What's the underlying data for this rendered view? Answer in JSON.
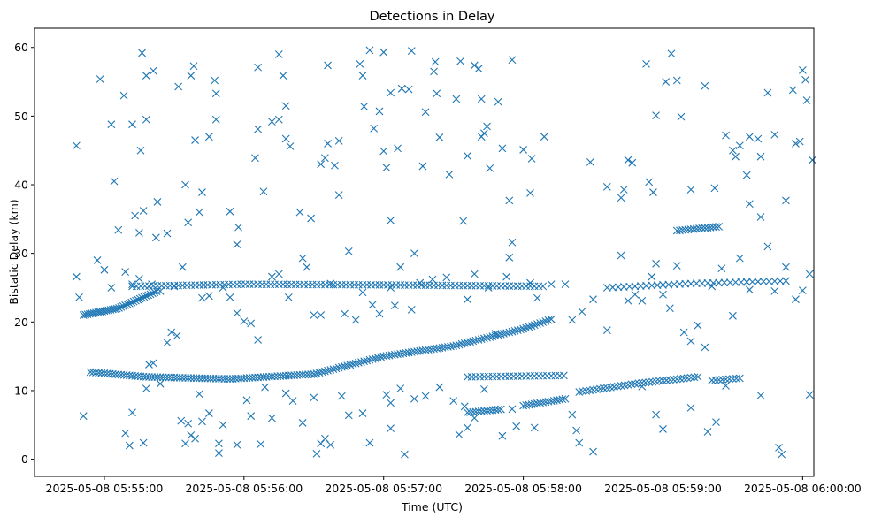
{
  "chart_data": {
    "type": "scatter",
    "title": "Detections in Delay",
    "xlabel": "Time (UTC)",
    "ylabel": "Bistatic Delay (km)",
    "marker": "x",
    "color": "#1f77b4",
    "grid": false,
    "xlim_minutes": [
      -0.5,
      5.08
    ],
    "ylim": [
      -2.5,
      62.8
    ],
    "x_ticks": [
      {
        "value": 0,
        "label": "2025-05-08 05:55:00"
      },
      {
        "value": 1,
        "label": "2025-05-08 05:56:00"
      },
      {
        "value": 2,
        "label": "2025-05-08 05:57:00"
      },
      {
        "value": 3,
        "label": "2025-05-08 05:58:00"
      },
      {
        "value": 4,
        "label": "2025-05-08 05:59:00"
      },
      {
        "value": 5,
        "label": "2025-05-08 06:00:00"
      }
    ],
    "y_ticks": [
      {
        "value": 0,
        "label": "0"
      },
      {
        "value": 10,
        "label": "10"
      },
      {
        "value": 20,
        "label": "20"
      },
      {
        "value": 30,
        "label": "30"
      },
      {
        "value": 40,
        "label": "40"
      },
      {
        "value": 50,
        "label": "50"
      },
      {
        "value": 60,
        "label": "60"
      }
    ],
    "x_unit_note": "x values are minutes after 2025-05-08 05:55:00 UTC",
    "tracks": [
      {
        "name": "rising-delay-track",
        "x_start": -0.1,
        "x_end": 3.2,
        "step": 0.02,
        "y_curve": [
          [
            -0.1,
            12.7
          ],
          [
            0.3,
            12.0
          ],
          [
            0.9,
            11.7
          ],
          [
            1.5,
            12.4
          ],
          [
            2.0,
            15.0
          ],
          [
            2.5,
            16.5
          ],
          [
            3.0,
            19.0
          ],
          [
            3.2,
            20.4
          ]
        ]
      },
      {
        "name": "upper-left-track",
        "x_start": -0.15,
        "x_end": 0.38,
        "step": 0.015,
        "y_curve": [
          [
            -0.15,
            21.0
          ],
          [
            0.1,
            22.0
          ],
          [
            0.38,
            24.5
          ]
        ]
      },
      {
        "name": "constant-25km-track",
        "x_start": 0.2,
        "x_end": 3.15,
        "step": 0.03,
        "y_curve": [
          [
            0.2,
            25.2
          ],
          [
            1.0,
            25.5
          ],
          [
            2.0,
            25.4
          ],
          [
            3.15,
            25.2
          ]
        ]
      },
      {
        "name": "late-9-12km-track",
        "x_start": 3.4,
        "x_end": 4.25,
        "step": 0.025,
        "y_curve": [
          [
            3.4,
            9.8
          ],
          [
            3.8,
            11.0
          ],
          [
            4.25,
            12.0
          ]
        ]
      },
      {
        "name": "late-25km-track",
        "x_start": 3.6,
        "x_end": 4.9,
        "step": 0.04,
        "y_curve": [
          [
            3.6,
            25.0
          ],
          [
            4.2,
            25.6
          ],
          [
            4.9,
            26.0
          ]
        ]
      },
      {
        "name": "cluster-12km",
        "x_start": 2.6,
        "x_end": 3.3,
        "step": 0.03,
        "y_curve": [
          [
            2.6,
            12.0
          ],
          [
            3.3,
            12.2
          ]
        ]
      },
      {
        "name": "cluster-7km",
        "x_start": 2.6,
        "x_end": 2.85,
        "step": 0.02,
        "y_curve": [
          [
            2.6,
            6.8
          ],
          [
            2.85,
            7.3
          ]
        ]
      },
      {
        "name": "cluster-8km",
        "x_start": 3.0,
        "x_end": 3.3,
        "step": 0.02,
        "y_curve": [
          [
            3.0,
            7.8
          ],
          [
            3.3,
            8.8
          ]
        ]
      },
      {
        "name": "cluster-33km",
        "x_start": 4.1,
        "x_end": 4.4,
        "step": 0.02,
        "y_curve": [
          [
            4.1,
            33.3
          ],
          [
            4.4,
            33.9
          ]
        ]
      },
      {
        "name": "cluster-11km",
        "x_start": 4.35,
        "x_end": 4.55,
        "step": 0.025,
        "y_curve": [
          [
            4.35,
            11.5
          ],
          [
            4.55,
            11.8
          ]
        ]
      }
    ],
    "points": [
      [
        -0.2,
        45.7
      ],
      [
        -0.03,
        55.4
      ],
      [
        0.05,
        48.8
      ],
      [
        0.07,
        40.5
      ],
      [
        0.1,
        33.4
      ],
      [
        0.14,
        53.0
      ],
      [
        0.2,
        48.8
      ],
      [
        0.26,
        45.0
      ],
      [
        0.27,
        59.2
      ],
      [
        0.3,
        49.5
      ],
      [
        0.35,
        56.6
      ],
      [
        0.3,
        55.9
      ],
      [
        0.25,
        33.0
      ],
      [
        0.22,
        35.5
      ],
      [
        0.28,
        36.2
      ],
      [
        0.38,
        37.5
      ],
      [
        0.37,
        32.3
      ],
      [
        0.45,
        32.9
      ],
      [
        0.53,
        54.3
      ],
      [
        0.58,
        40.0
      ],
      [
        0.62,
        55.9
      ],
      [
        0.64,
        57.3
      ],
      [
        0.65,
        46.5
      ],
      [
        0.7,
        38.9
      ],
      [
        0.6,
        34.5
      ],
      [
        0.68,
        36.0
      ],
      [
        0.75,
        47.0
      ],
      [
        0.8,
        49.5
      ],
      [
        0.8,
        53.3
      ],
      [
        0.79,
        55.2
      ],
      [
        0.9,
        36.1
      ],
      [
        0.96,
        33.8
      ],
      [
        0.95,
        31.3
      ],
      [
        1.08,
        43.9
      ],
      [
        1.1,
        48.1
      ],
      [
        1.14,
        39.0
      ],
      [
        1.1,
        57.1
      ],
      [
        1.2,
        49.2
      ],
      [
        1.25,
        49.5
      ],
      [
        1.25,
        59.0
      ],
      [
        1.28,
        55.9
      ],
      [
        1.3,
        51.5
      ],
      [
        1.3,
        46.7
      ],
      [
        1.33,
        45.6
      ],
      [
        1.4,
        36.0
      ],
      [
        1.48,
        35.1
      ],
      [
        1.55,
        43.0
      ],
      [
        1.58,
        43.9
      ],
      [
        1.6,
        46.0
      ],
      [
        1.6,
        57.4
      ],
      [
        1.68,
        46.4
      ],
      [
        1.65,
        42.8
      ],
      [
        1.68,
        38.5
      ],
      [
        1.75,
        30.3
      ],
      [
        1.83,
        57.6
      ],
      [
        1.85,
        55.9
      ],
      [
        1.86,
        51.4
      ],
      [
        1.9,
        59.6
      ],
      [
        1.93,
        48.2
      ],
      [
        1.97,
        50.7
      ],
      [
        2.0,
        44.9
      ],
      [
        2.05,
        53.4
      ],
      [
        2.1,
        45.3
      ],
      [
        2.13,
        54.0
      ],
      [
        2.0,
        59.3
      ],
      [
        2.02,
        42.5
      ],
      [
        2.05,
        34.8
      ],
      [
        2.18,
        53.9
      ],
      [
        2.2,
        59.5
      ],
      [
        2.22,
        30.0
      ],
      [
        2.28,
        42.7
      ],
      [
        2.3,
        50.6
      ],
      [
        2.36,
        56.5
      ],
      [
        2.37,
        57.9
      ],
      [
        2.38,
        53.3
      ],
      [
        2.4,
        46.9
      ],
      [
        2.47,
        41.5
      ],
      [
        2.52,
        52.5
      ],
      [
        2.55,
        58.0
      ],
      [
        2.6,
        44.2
      ],
      [
        2.57,
        34.7
      ],
      [
        2.65,
        57.4
      ],
      [
        2.68,
        56.9
      ],
      [
        2.7,
        52.5
      ],
      [
        2.72,
        47.5
      ],
      [
        2.74,
        48.5
      ],
      [
        2.76,
        42.4
      ],
      [
        2.7,
        47.0
      ],
      [
        2.82,
        52.1
      ],
      [
        2.85,
        45.3
      ],
      [
        2.9,
        37.7
      ],
      [
        2.92,
        58.2
      ],
      [
        3.0,
        45.1
      ],
      [
        3.05,
        38.8
      ],
      [
        3.06,
        43.8
      ],
      [
        3.15,
        47.0
      ],
      [
        3.48,
        43.3
      ],
      [
        3.6,
        39.7
      ],
      [
        3.7,
        38.1
      ],
      [
        3.72,
        39.3
      ],
      [
        3.75,
        43.6
      ],
      [
        3.78,
        43.2
      ],
      [
        3.88,
        57.6
      ],
      [
        3.9,
        40.4
      ],
      [
        3.93,
        38.9
      ],
      [
        3.95,
        50.1
      ],
      [
        4.02,
        55.0
      ],
      [
        4.06,
        59.1
      ],
      [
        4.1,
        55.2
      ],
      [
        4.13,
        49.9
      ],
      [
        4.2,
        39.3
      ],
      [
        4.3,
        54.4
      ],
      [
        4.37,
        39.5
      ],
      [
        4.45,
        47.2
      ],
      [
        4.5,
        45.0
      ],
      [
        4.52,
        44.1
      ],
      [
        4.55,
        45.7
      ],
      [
        4.6,
        41.4
      ],
      [
        4.62,
        47.0
      ],
      [
        4.62,
        37.2
      ],
      [
        4.68,
        46.7
      ],
      [
        4.7,
        44.1
      ],
      [
        4.75,
        53.4
      ],
      [
        4.8,
        47.3
      ],
      [
        4.88,
        37.7
      ],
      [
        4.93,
        53.8
      ],
      [
        4.95,
        46.0
      ],
      [
        4.98,
        46.3
      ],
      [
        5.0,
        56.7
      ],
      [
        5.02,
        55.3
      ],
      [
        5.03,
        52.3
      ],
      [
        5.07,
        43.6
      ],
      [
        5.1,
        34.3
      ],
      [
        5.18,
        35.0
      ],
      [
        5.23,
        39.0
      ],
      [
        5.25,
        54.0
      ],
      [
        5.27,
        41.0
      ],
      [
        5.33,
        39.5
      ],
      [
        5.32,
        30.8
      ],
      [
        5.28,
        20.2
      ],
      [
        -0.15,
        6.3
      ],
      [
        0.15,
        3.8
      ],
      [
        0.18,
        2.0
      ],
      [
        0.2,
        6.8
      ],
      [
        0.28,
        2.4
      ],
      [
        0.3,
        10.3
      ],
      [
        0.32,
        13.8
      ],
      [
        0.35,
        14.0
      ],
      [
        0.4,
        11.0
      ],
      [
        0.45,
        17.0
      ],
      [
        0.48,
        18.5
      ],
      [
        0.52,
        18.0
      ],
      [
        0.55,
        5.6
      ],
      [
        0.58,
        2.3
      ],
      [
        0.6,
        5.2
      ],
      [
        0.62,
        3.5
      ],
      [
        0.65,
        3.0
      ],
      [
        0.68,
        9.5
      ],
      [
        0.7,
        5.5
      ],
      [
        0.75,
        6.7
      ],
      [
        0.82,
        2.3
      ],
      [
        0.82,
        0.9
      ],
      [
        0.85,
        5.0
      ],
      [
        0.95,
        2.1
      ],
      [
        1.02,
        8.6
      ],
      [
        1.05,
        6.3
      ],
      [
        1.12,
        2.2
      ],
      [
        1.15,
        10.5
      ],
      [
        1.2,
        6.0
      ],
      [
        1.3,
        9.6
      ],
      [
        1.35,
        8.5
      ],
      [
        1.42,
        5.3
      ],
      [
        1.5,
        9.0
      ],
      [
        1.52,
        0.8
      ],
      [
        1.55,
        2.3
      ],
      [
        1.58,
        3.0
      ],
      [
        1.62,
        2.1
      ],
      [
        1.7,
        9.2
      ],
      [
        1.75,
        6.4
      ],
      [
        1.85,
        6.7
      ],
      [
        1.9,
        2.4
      ],
      [
        2.02,
        9.4
      ],
      [
        2.05,
        8.2
      ],
      [
        2.05,
        4.5
      ],
      [
        2.12,
        10.3
      ],
      [
        2.15,
        0.7
      ],
      [
        2.22,
        8.8
      ],
      [
        2.3,
        9.2
      ],
      [
        2.4,
        10.5
      ],
      [
        2.5,
        8.5
      ],
      [
        2.54,
        3.6
      ],
      [
        2.58,
        7.7
      ],
      [
        2.6,
        4.6
      ],
      [
        2.65,
        6.0
      ],
      [
        2.72,
        10.2
      ],
      [
        2.85,
        3.4
      ],
      [
        2.92,
        7.3
      ],
      [
        2.95,
        4.8
      ],
      [
        3.08,
        4.6
      ],
      [
        3.35,
        6.5
      ],
      [
        3.38,
        4.2
      ],
      [
        3.4,
        2.4
      ],
      [
        3.5,
        1.1
      ],
      [
        3.85,
        10.6
      ],
      [
        3.95,
        6.5
      ],
      [
        4.0,
        4.4
      ],
      [
        4.2,
        7.5
      ],
      [
        4.32,
        4.0
      ],
      [
        4.38,
        5.4
      ],
      [
        4.45,
        10.7
      ],
      [
        4.7,
        9.3
      ],
      [
        4.83,
        1.7
      ],
      [
        4.85,
        0.7
      ],
      [
        5.05,
        9.4
      ],
      [
        5.1,
        4.0
      ],
      [
        5.2,
        10.4
      ],
      [
        5.22,
        17.0
      ],
      [
        5.27,
        12.2
      ],
      [
        5.3,
        15.0
      ],
      [
        5.15,
        19.8
      ],
      [
        5.1,
        23.0
      ],
      [
        -0.2,
        26.6
      ],
      [
        -0.18,
        23.6
      ],
      [
        -0.05,
        29.0
      ],
      [
        0.0,
        27.6
      ],
      [
        0.05,
        25.0
      ],
      [
        0.15,
        27.3
      ],
      [
        0.2,
        25.5
      ],
      [
        0.25,
        26.3
      ],
      [
        0.34,
        25.5
      ],
      [
        0.4,
        24.5
      ],
      [
        0.5,
        25.2
      ],
      [
        0.56,
        28.0
      ],
      [
        0.7,
        23.5
      ],
      [
        0.75,
        23.8
      ],
      [
        0.85,
        25.0
      ],
      [
        0.9,
        23.6
      ],
      [
        0.95,
        21.3
      ],
      [
        1.0,
        20.1
      ],
      [
        1.05,
        19.8
      ],
      [
        1.1,
        17.4
      ],
      [
        1.2,
        26.6
      ],
      [
        1.25,
        27.0
      ],
      [
        1.32,
        23.6
      ],
      [
        1.42,
        29.3
      ],
      [
        1.45,
        28.0
      ],
      [
        1.5,
        21.0
      ],
      [
        1.55,
        21.0
      ],
      [
        1.62,
        25.6
      ],
      [
        1.72,
        21.2
      ],
      [
        1.8,
        20.3
      ],
      [
        1.85,
        24.3
      ],
      [
        1.92,
        22.5
      ],
      [
        1.97,
        21.2
      ],
      [
        2.05,
        25.0
      ],
      [
        2.08,
        22.4
      ],
      [
        2.12,
        28.0
      ],
      [
        2.2,
        21.8
      ],
      [
        2.26,
        25.7
      ],
      [
        2.35,
        26.2
      ],
      [
        2.45,
        26.5
      ],
      [
        2.6,
        23.3
      ],
      [
        2.65,
        27.0
      ],
      [
        2.75,
        25.0
      ],
      [
        2.8,
        18.3
      ],
      [
        2.88,
        26.6
      ],
      [
        2.9,
        29.4
      ],
      [
        2.92,
        31.6
      ],
      [
        3.05,
        25.7
      ],
      [
        3.1,
        23.5
      ],
      [
        3.2,
        25.5
      ],
      [
        3.3,
        25.5
      ],
      [
        3.35,
        20.3
      ],
      [
        3.42,
        21.5
      ],
      [
        3.5,
        23.3
      ],
      [
        3.6,
        18.8
      ],
      [
        3.7,
        29.7
      ],
      [
        3.75,
        23.1
      ],
      [
        3.8,
        24.0
      ],
      [
        3.85,
        23.1
      ],
      [
        3.92,
        26.6
      ],
      [
        3.95,
        28.5
      ],
      [
        4.0,
        24.0
      ],
      [
        4.05,
        22.0
      ],
      [
        4.1,
        28.2
      ],
      [
        4.15,
        18.5
      ],
      [
        4.2,
        17.2
      ],
      [
        4.25,
        19.5
      ],
      [
        4.3,
        16.3
      ],
      [
        4.35,
        25.2
      ],
      [
        4.42,
        27.8
      ],
      [
        4.5,
        20.9
      ],
      [
        4.55,
        29.3
      ],
      [
        4.62,
        24.7
      ],
      [
        4.7,
        35.3
      ],
      [
        4.75,
        31.0
      ],
      [
        4.8,
        24.5
      ],
      [
        4.88,
        28.0
      ],
      [
        4.95,
        23.3
      ],
      [
        5.0,
        24.6
      ],
      [
        5.05,
        27.0
      ],
      [
        5.12,
        20.0
      ],
      [
        5.18,
        25.0
      ]
    ]
  }
}
